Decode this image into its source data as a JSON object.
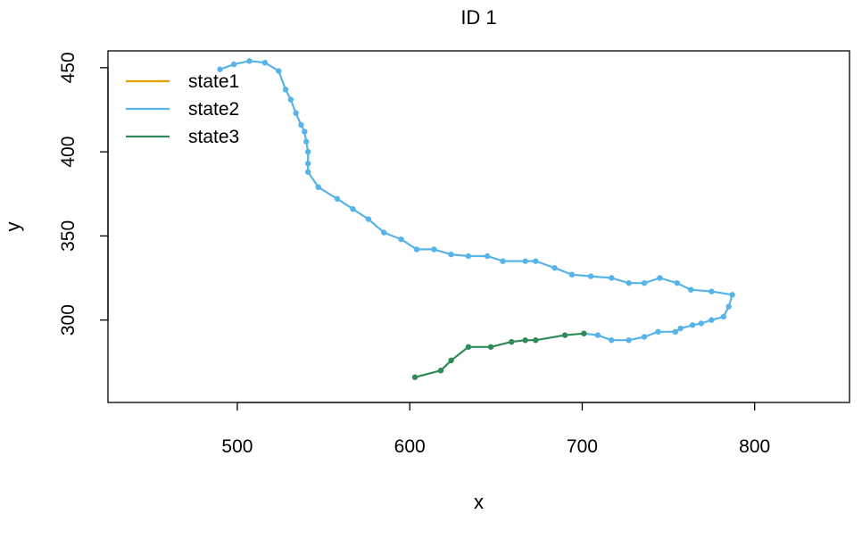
{
  "chart_data": {
    "type": "line",
    "title": "ID 1",
    "xlabel": "x",
    "ylabel": "y",
    "xlim": [
      425,
      855
    ],
    "ylim": [
      251,
      460
    ],
    "x_ticks": [
      500,
      600,
      700,
      800
    ],
    "y_ticks": [
      300,
      350,
      400,
      450
    ],
    "legend": {
      "placement": "top-left",
      "entries": [
        {
          "label": "state1",
          "color": "#E69F00"
        },
        {
          "label": "state2",
          "color": "#56B4E9"
        },
        {
          "label": "state3",
          "color": "#2E8B57"
        }
      ]
    },
    "series": [
      {
        "name": "state2",
        "color": "#56B4E9",
        "x": [
          490,
          498,
          507,
          516,
          524,
          528,
          531,
          534,
          537,
          539,
          540,
          541,
          541,
          541,
          547,
          558,
          567,
          576,
          585,
          595,
          604,
          614,
          624,
          634,
          645,
          654,
          667,
          673,
          684,
          694,
          705,
          717,
          727,
          736,
          745,
          755,
          763,
          775,
          787,
          785,
          782,
          775,
          769,
          764,
          757,
          754,
          744,
          736,
          727,
          717,
          709,
          701
        ],
        "y": [
          449,
          452,
          454,
          453,
          448,
          437,
          431,
          423,
          416,
          412,
          406,
          400,
          393,
          388,
          379,
          372,
          366,
          360,
          352,
          348,
          342,
          342,
          339,
          338,
          338,
          335,
          335,
          335,
          331,
          327,
          326,
          325,
          322,
          322,
          325,
          322,
          318,
          317,
          315,
          308,
          302,
          300,
          298,
          297,
          295,
          293,
          293,
          290,
          288,
          288,
          291,
          292
        ]
      },
      {
        "name": "state3",
        "color": "#2E8B57",
        "x": [
          603,
          618,
          624,
          634,
          647,
          659,
          667,
          673,
          690,
          701
        ],
        "y": [
          266,
          270,
          276,
          284,
          284,
          287,
          288,
          288,
          291,
          292
        ]
      }
    ]
  }
}
